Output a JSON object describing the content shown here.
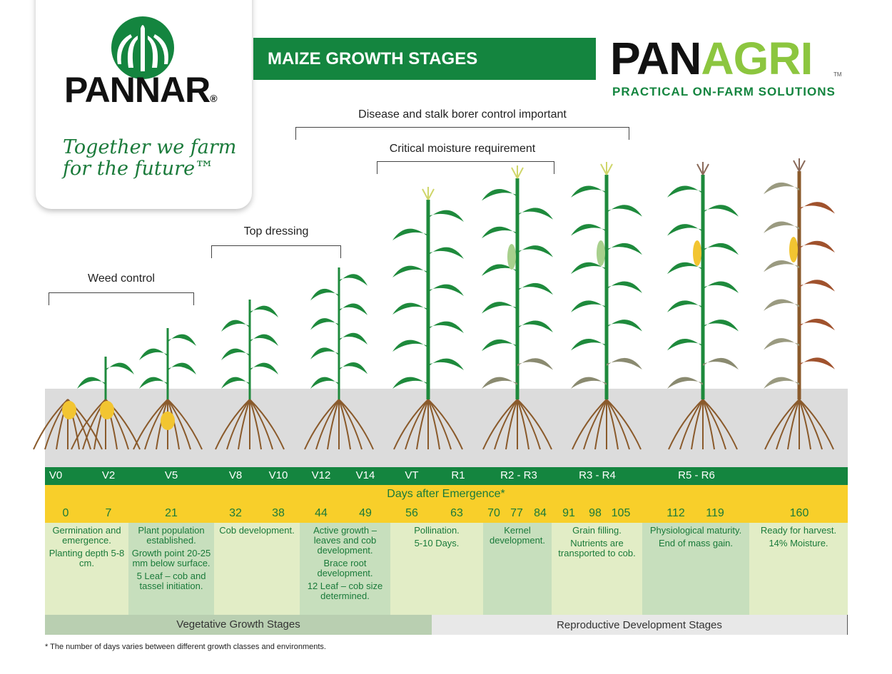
{
  "logo": {
    "brand": "PANNAR",
    "registered": "®",
    "slogan_line1": "Together we farm",
    "slogan_line2": "for the future™"
  },
  "title": "MAIZE GROWTH STAGES",
  "panagri": {
    "part1": "PAN",
    "part2": "AGRI",
    "tm": "TM",
    "tagline": "PRACTICAL ON-FARM SOLUTIONS"
  },
  "brackets": [
    "Weed control",
    "Top dressing",
    "Critical moisture requirement",
    "Disease and stalk borer control important"
  ],
  "stages": [
    "V0",
    "V2",
    "V5",
    "V8",
    "V10",
    "V12",
    "V14",
    "VT",
    "R1",
    "R2 - R3",
    "R3 - R4",
    "R5 - R6"
  ],
  "days_title": "Days after Emergence*",
  "days": [
    "0",
    "7",
    "21",
    "32",
    "38",
    "44",
    "49",
    "56",
    "63",
    "70",
    "77",
    "84",
    "91",
    "98",
    "105",
    "112",
    "119",
    "160"
  ],
  "descriptions": [
    [
      "Germination and emergence.",
      "Planting depth 5-8 cm."
    ],
    [
      "Plant population established.",
      "Growth point 20-25 mm below surface.",
      "5 Leaf – cob and tassel initiation."
    ],
    [
      "Cob development."
    ],
    [
      "Active growth – leaves and cob development.",
      "Brace root development.",
      "12 Leaf – cob size determined."
    ],
    [
      "Pollination.",
      "5-10 Days."
    ],
    [
      "Kernel development."
    ],
    [
      "Grain filling.",
      "Nutrients are transported to cob."
    ],
    [
      "Physiological maturity.",
      "End of mass gain."
    ],
    [
      "Ready for harvest.",
      "14% Moisture."
    ]
  ],
  "phases": {
    "vegetative": "Vegetative Growth Stages",
    "reproductive": "Reproductive Development Stages"
  },
  "footnote": "* The number of days varies between different growth classes and environments.",
  "colors": {
    "green": "#14853f",
    "yellow": "#f8cf2a",
    "lime": "#8cc63f"
  }
}
